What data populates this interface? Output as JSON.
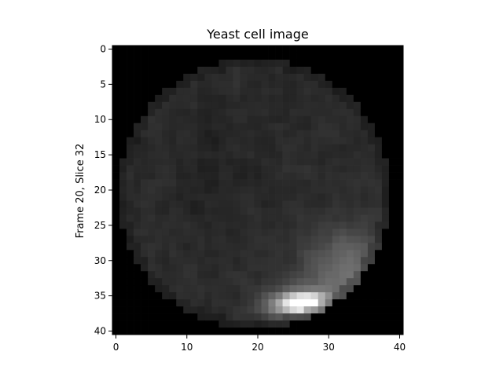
{
  "figure": {
    "title": "Yeast cell image",
    "ylabel": "Frame 20, Slice 32",
    "background": "#ffffff",
    "axis_color": "#000000"
  },
  "chart_data": {
    "type": "heatmap",
    "title": "Yeast cell image",
    "xlabel": "",
    "ylabel": "Frame 20, Slice 32",
    "colormap": "gray",
    "rows": 41,
    "cols": 41,
    "x_ticks": [
      0,
      10,
      20,
      30,
      40
    ],
    "y_ticks": [
      0,
      5,
      10,
      15,
      20,
      25,
      30,
      35,
      40
    ],
    "x_tick_labels": [
      "0",
      "10",
      "20",
      "30",
      "40"
    ],
    "y_tick_labels": [
      "0",
      "5",
      "10",
      "15",
      "20",
      "25",
      "30",
      "35",
      "40"
    ],
    "xlim": [
      -0.5,
      40.5
    ],
    "ylim": [
      40.5,
      -0.5
    ],
    "cell": {
      "center_col": 19.5,
      "center_row": 20.5,
      "radius": 19.2,
      "base_intensity": 0.17,
      "bright_spot": {
        "col": 27,
        "row": 36,
        "peak_intensity": 1.0
      }
    }
  }
}
